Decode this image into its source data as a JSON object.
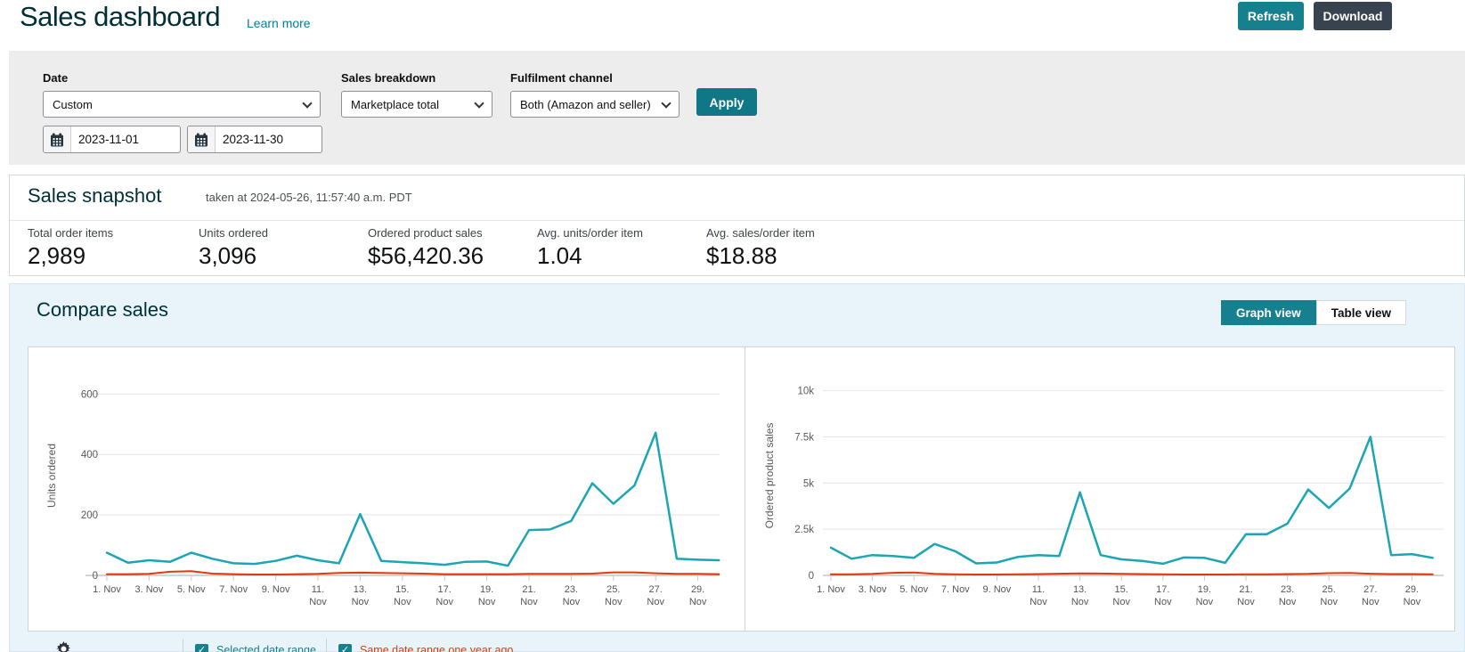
{
  "header": {
    "title": "Sales dashboard",
    "learn_more": "Learn more",
    "refresh_label": "Refresh",
    "download_label": "Download"
  },
  "filters": {
    "date": {
      "label": "Date",
      "selected": "Custom",
      "from": "2023-11-01",
      "to": "2023-11-30"
    },
    "sales_breakdown": {
      "label": "Sales breakdown",
      "selected": "Marketplace total"
    },
    "fulfilment_channel": {
      "label": "Fulfilment channel",
      "selected": "Both (Amazon and seller)"
    },
    "apply_label": "Apply"
  },
  "snapshot": {
    "title": "Sales snapshot",
    "taken_at": "taken at 2024-05-26, 11:57:40 a.m. PDT",
    "metrics": [
      {
        "label": "Total order items",
        "value": "2,989"
      },
      {
        "label": "Units ordered",
        "value": "3,096"
      },
      {
        "label": "Ordered product sales",
        "value": "$56,420.36"
      },
      {
        "label": "Avg. units/order item",
        "value": "1.04"
      },
      {
        "label": "Avg. sales/order item",
        "value": "$18.88"
      }
    ]
  },
  "compare": {
    "title": "Compare sales",
    "graph_view_label": "Graph view",
    "table_view_label": "Table view",
    "legend": [
      {
        "label": "Selected date range",
        "color": "#17808e"
      },
      {
        "label": "Same date range one year ago",
        "color": "#dd3b0a"
      }
    ]
  },
  "colors": {
    "accent_teal": "#17808e",
    "dark_button": "#39434f",
    "line_selected": "#1ba5b5",
    "line_previous": "#dd3b0a",
    "panel_blue": "#e8f4fa",
    "filter_gray": "#ededed"
  },
  "chart_data": [
    {
      "type": "line",
      "ylabel": "Units ordered",
      "x_unit": "day of November 2023",
      "categories": [
        "1. Nov",
        "2. Nov",
        "3. Nov",
        "4. Nov",
        "5. Nov",
        "6. Nov",
        "7. Nov",
        "8. Nov",
        "9. Nov",
        "10. Nov",
        "11. Nov",
        "12. Nov",
        "13. Nov",
        "14. Nov",
        "15. Nov",
        "16. Nov",
        "17. Nov",
        "18. Nov",
        "19. Nov",
        "20. Nov",
        "21. Nov",
        "22. Nov",
        "23. Nov",
        "24. Nov",
        "25. Nov",
        "26. Nov",
        "27. Nov",
        "28. Nov",
        "29. Nov",
        "30. Nov"
      ],
      "xtick_days": [
        1,
        3,
        5,
        7,
        9,
        11,
        13,
        15,
        17,
        19,
        21,
        23,
        25,
        27,
        29
      ],
      "ylim": [
        0,
        660
      ],
      "yticks": [
        {
          "v": 0,
          "label": "0"
        },
        {
          "v": 200,
          "label": "200"
        },
        {
          "v": 400,
          "label": "400"
        },
        {
          "v": 600,
          "label": "600"
        }
      ],
      "grid": true,
      "legend_position": "bottom",
      "series": [
        {
          "name": "Selected date range",
          "color": "#1ba5b5",
          "values": [
            75,
            42,
            50,
            45,
            75,
            55,
            40,
            38,
            48,
            65,
            50,
            40,
            203,
            48,
            44,
            40,
            35,
            45,
            46,
            32,
            150,
            152,
            180,
            305,
            237,
            298,
            472,
            55,
            52,
            50
          ]
        },
        {
          "name": "Same date range one year ago",
          "color": "#dd3b0a",
          "values": [
            4,
            4,
            5,
            12,
            14,
            6,
            4,
            3,
            3,
            4,
            5,
            8,
            9,
            8,
            7,
            6,
            4,
            4,
            4,
            4,
            5,
            5,
            5,
            6,
            10,
            10,
            7,
            5,
            5,
            4
          ]
        }
      ]
    },
    {
      "type": "line",
      "ylabel": "Ordered product sales",
      "x_unit": "day of November 2023",
      "categories": [
        "1. Nov",
        "2. Nov",
        "3. Nov",
        "4. Nov",
        "5. Nov",
        "6. Nov",
        "7. Nov",
        "8. Nov",
        "9. Nov",
        "10. Nov",
        "11. Nov",
        "12. Nov",
        "13. Nov",
        "14. Nov",
        "15. Nov",
        "16. Nov",
        "17. Nov",
        "18. Nov",
        "19. Nov",
        "20. Nov",
        "21. Nov",
        "22. Nov",
        "23. Nov",
        "24. Nov",
        "25. Nov",
        "26. Nov",
        "27. Nov",
        "28. Nov",
        "29. Nov",
        "30. Nov"
      ],
      "xtick_days": [
        1,
        3,
        5,
        7,
        9,
        11,
        13,
        15,
        17,
        19,
        21,
        23,
        25,
        27,
        29
      ],
      "ylim": [
        0,
        10800
      ],
      "yticks": [
        {
          "v": 0,
          "label": "0"
        },
        {
          "v": 2500,
          "label": "2.5k"
        },
        {
          "v": 5000,
          "label": "5k"
        },
        {
          "v": 7500,
          "label": "7.5k"
        },
        {
          "v": 10000,
          "label": "10k"
        }
      ],
      "grid": true,
      "legend_position": "bottom",
      "series": [
        {
          "name": "Selected date range",
          "color": "#1ba5b5",
          "values": [
            1500,
            900,
            1100,
            1050,
            950,
            1700,
            1300,
            650,
            700,
            1000,
            1100,
            1050,
            4500,
            1100,
            870,
            780,
            630,
            970,
            950,
            680,
            2230,
            2230,
            2800,
            4650,
            3650,
            4700,
            7500,
            1100,
            1150,
            950
          ]
        },
        {
          "name": "Same date range one year ago",
          "color": "#dd3b0a",
          "values": [
            60,
            60,
            80,
            140,
            160,
            80,
            60,
            50,
            50,
            60,
            70,
            90,
            110,
            100,
            80,
            70,
            60,
            50,
            50,
            50,
            60,
            60,
            70,
            80,
            120,
            130,
            90,
            70,
            70,
            60
          ]
        }
      ]
    }
  ]
}
